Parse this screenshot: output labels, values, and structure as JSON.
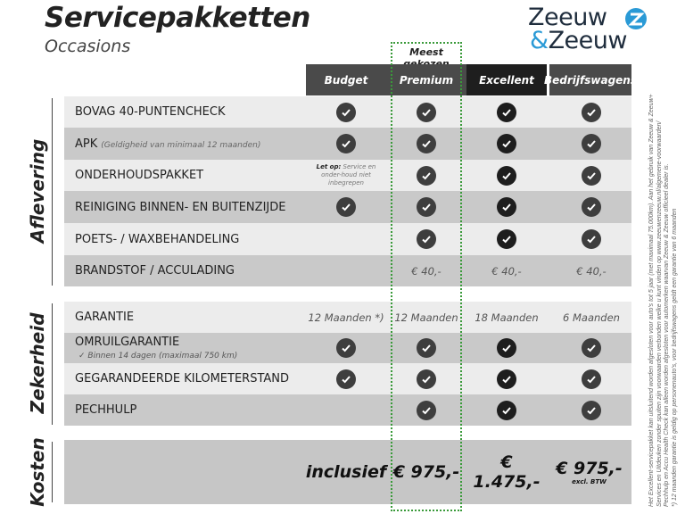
{
  "header": {
    "title": "Servicepakketten",
    "subtitle": "Occasions",
    "logo": "Zeeuw & Zeeuw",
    "badge": "Meest gekozen"
  },
  "columns": [
    "Budget",
    "Premium",
    "Excellent",
    "Bedrijfswagens"
  ],
  "colors": {
    "header_budget": "#4a4a4a",
    "header_premium": "#4a4a4a",
    "header_excellent": "#1e1e1e",
    "header_bedrijf": "#4a4a4a",
    "row_light": "#ececec",
    "row_dark": "#c9c9c9",
    "highlight": "#3a9a3a",
    "logo_accent": "#2a9ad6"
  },
  "sections": [
    {
      "label": "Aflevering",
      "rows": [
        {
          "label": "BOVAG 40-PUNTENCHECK",
          "cells": [
            "check",
            "check",
            "check",
            "check"
          ]
        },
        {
          "label": "APK",
          "note": "(Geldigheid van minimaal 12 maanden)",
          "cells": [
            "check",
            "check",
            "check",
            "check"
          ]
        },
        {
          "label": "ONDERHOUDSPAKKET",
          "cells": [
            {
              "warn_bold": "Let op:",
              "warn": "Service en onder-houd niet inbegrepen"
            },
            "check",
            "check",
            "check"
          ]
        },
        {
          "label": "REINIGING BINNEN- EN BUITENZIJDE",
          "cells": [
            "check",
            "check",
            "check",
            "check"
          ]
        },
        {
          "label": "POETS- / WAXBEHANDELING",
          "cells": [
            "",
            "check",
            "check",
            "check"
          ]
        },
        {
          "label": "BRANDSTOF / ACCULADING",
          "cells": [
            "",
            "€ 40,-",
            "€ 40,-",
            "€ 40,-"
          ]
        }
      ]
    },
    {
      "label": "Zekerheid",
      "rows": [
        {
          "label": "GARANTIE",
          "cells": [
            "12 Maanden *)",
            "12 Maanden",
            "18 Maanden",
            "6 Maanden"
          ]
        },
        {
          "label": "OMRUILGARANTIE",
          "sub": "✓  Binnen 14 dagen (maximaal 750 km)",
          "cells": [
            "check",
            "check",
            "check",
            "check"
          ]
        },
        {
          "label": "GEGARANDEERDE KILOMETERSTAND",
          "cells": [
            "check",
            "check",
            "check",
            "check"
          ]
        },
        {
          "label": "PECHHULP",
          "cells": [
            "",
            "check",
            "check",
            "check"
          ]
        }
      ]
    },
    {
      "label": "Kosten",
      "prices": [
        "inclusief",
        "€ 975,-",
        "€ 1.475,-",
        "€ 975,-"
      ],
      "price_note": "excl. BTW"
    }
  ],
  "footnote": [
    "Het Excellent-servicepakket kan uitsluitend worden afgesloten voor auto's tot 5 jaar (met maximaal 75.000km). Aan het gebruik van Zeeuw & Zeeuw+",
    "Services en Uitdeuken zonder spuiten zijn voorwaarden verbonden welke u kunt vinden op www.zeeuwenzeeuw.nl/algemene-voorwaarden/",
    "Pechhulp en Accu Health Check kan alleen worden afgesloten voor automerken waarvan Zeeuw & Zeeuw officieel dealer is.",
    "*) 12 maanden garantie is geldig op personenauto's, voor bedrijfswagens geldt een garantie van 6 maanden"
  ]
}
